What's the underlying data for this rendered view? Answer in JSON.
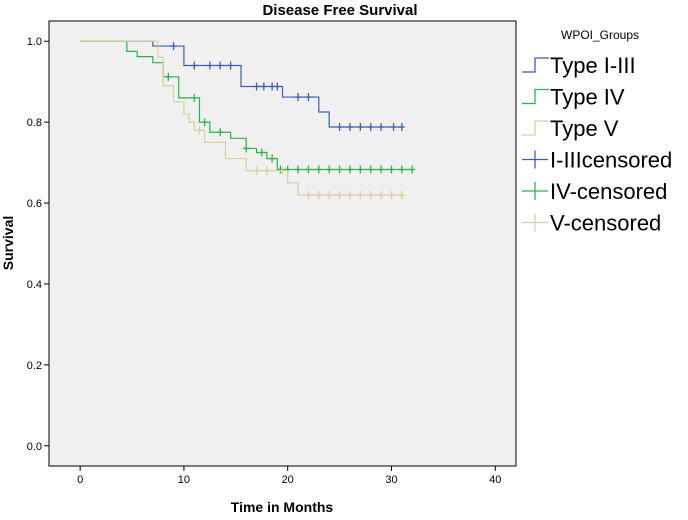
{
  "chart_data": {
    "type": "line",
    "subtype": "kaplan-meier",
    "title": "Disease Free Survival",
    "xlabel": "Time in Months",
    "ylabel": "Survival",
    "xlim": [
      -3,
      42
    ],
    "ylim": [
      -0.05,
      1.05
    ],
    "xticks": [
      0,
      10,
      20,
      30,
      40
    ],
    "yticks": [
      0.0,
      0.2,
      0.4,
      0.6,
      0.8,
      1.0
    ],
    "ytick_labels": [
      "0.0",
      "0.2",
      "0.4",
      "0.6",
      "0.8",
      "1.0"
    ],
    "grid": false,
    "background": "#f0f0f0",
    "legend": {
      "title": "WPOI_Groups",
      "placement": "right",
      "entries": [
        "Type I-III",
        "Type IV",
        "Type V",
        "I-IIIcensored",
        "IV-censored",
        "V-censored"
      ]
    },
    "series": [
      {
        "name": "Type I-III",
        "censored_name": "I-IIIcensored",
        "color": "#3f5eb0",
        "steps": [
          [
            0,
            1.0
          ],
          [
            7,
            0.988
          ],
          [
            10,
            0.94
          ],
          [
            15.5,
            0.888
          ],
          [
            19.5,
            0.862
          ],
          [
            23,
            0.825
          ],
          [
            24,
            0.788
          ],
          [
            31,
            0.788
          ]
        ],
        "censored": [
          9,
          11,
          12.5,
          13.5,
          14.5,
          17,
          17.7,
          18.5,
          19,
          21,
          22,
          25,
          26,
          27,
          28,
          29,
          30.2,
          31
        ]
      },
      {
        "name": "Type IV",
        "censored_name": "IV-censored",
        "color": "#2eb14a",
        "steps": [
          [
            0,
            1.0
          ],
          [
            4.5,
            0.975
          ],
          [
            5.5,
            0.962
          ],
          [
            7,
            0.947
          ],
          [
            8,
            0.912
          ],
          [
            9.5,
            0.86
          ],
          [
            11.5,
            0.8
          ],
          [
            12.5,
            0.775
          ],
          [
            14.5,
            0.76
          ],
          [
            16,
            0.735
          ],
          [
            17,
            0.725
          ],
          [
            18,
            0.71
          ],
          [
            19,
            0.683
          ],
          [
            32,
            0.683
          ]
        ],
        "censored": [
          8.5,
          11,
          12,
          13.5,
          16,
          17.5,
          18.5,
          19.3,
          20,
          21,
          22,
          23,
          24,
          25,
          26,
          27,
          28,
          29,
          30,
          31,
          32
        ]
      },
      {
        "name": "Type V",
        "censored_name": "V-censored",
        "color": "#d9cfa1",
        "steps": [
          [
            0,
            1.0
          ],
          [
            7.5,
            0.96
          ],
          [
            8,
            0.89
          ],
          [
            9,
            0.85
          ],
          [
            10,
            0.82
          ],
          [
            10.5,
            0.8
          ],
          [
            11,
            0.78
          ],
          [
            12,
            0.75
          ],
          [
            14,
            0.71
          ],
          [
            16,
            0.68
          ],
          [
            20,
            0.65
          ],
          [
            21,
            0.62
          ],
          [
            31,
            0.62
          ]
        ],
        "censored": [
          11.5,
          17,
          18,
          19.5,
          22,
          23,
          24,
          25,
          26,
          27,
          28,
          29,
          30,
          31
        ]
      }
    ]
  }
}
